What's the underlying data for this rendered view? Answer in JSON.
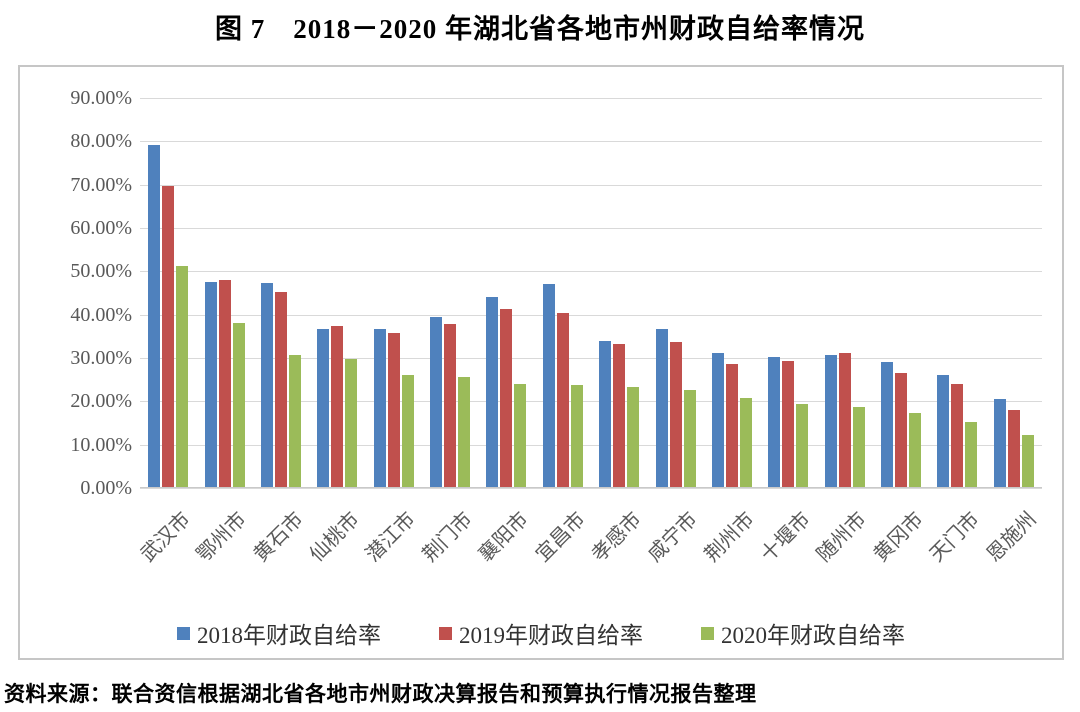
{
  "title": "图 7　2018－2020 年湖北省各地市州财政自给率情况",
  "source_note": "资料来源：联合资信根据湖北省各地市州财政决算报告和预算执行情况报告整理",
  "colors": {
    "series_2018": "#4F81BD",
    "series_2019": "#C0504D",
    "series_2020": "#9BBB59",
    "gridline": "#D9D9D9",
    "chart_border": "#C6C6C6",
    "axis_text": "#595959"
  },
  "chart_data": {
    "type": "bar",
    "title": "图 7　2018－2020 年湖北省各地市州财政自给率情况",
    "categories": [
      "武汉市",
      "鄂州市",
      "黄石市",
      "仙桃市",
      "潜江市",
      "荆门市",
      "襄阳市",
      "宜昌市",
      "孝感市",
      "咸宁市",
      "荆州市",
      "十堰市",
      "随州市",
      "黄冈市",
      "天门市",
      "恩施州"
    ],
    "series": [
      {
        "name": "2018年财政自给率",
        "color": "#4F81BD",
        "values": [
          79.2,
          47.6,
          47.4,
          36.8,
          36.8,
          39.5,
          44.0,
          47.0,
          34.0,
          36.8,
          31.1,
          30.2,
          30.8,
          29.0,
          26.1,
          20.5
        ]
      },
      {
        "name": "2019年财政自给率",
        "color": "#C0504D",
        "values": [
          69.8,
          48.0,
          45.2,
          37.4,
          35.8,
          37.8,
          41.4,
          40.3,
          33.2,
          33.8,
          28.7,
          29.4,
          31.1,
          26.6,
          24.1,
          18.1
        ]
      },
      {
        "name": "2020年财政自给率",
        "color": "#9BBB59",
        "values": [
          51.3,
          38.0,
          30.8,
          29.8,
          26.1,
          25.6,
          23.9,
          23.8,
          23.4,
          22.7,
          20.8,
          19.4,
          18.8,
          17.4,
          15.2,
          12.3
        ]
      }
    ],
    "y_axis": {
      "ticks": [
        "90.00%",
        "80.00%",
        "70.00%",
        "60.00%",
        "50.00%",
        "40.00%",
        "30.00%",
        "20.00%",
        "10.00%",
        "0.00%"
      ],
      "min": 0,
      "max": 90
    },
    "xlabel": "",
    "ylabel": "",
    "grid": true,
    "legend_position": "bottom"
  }
}
